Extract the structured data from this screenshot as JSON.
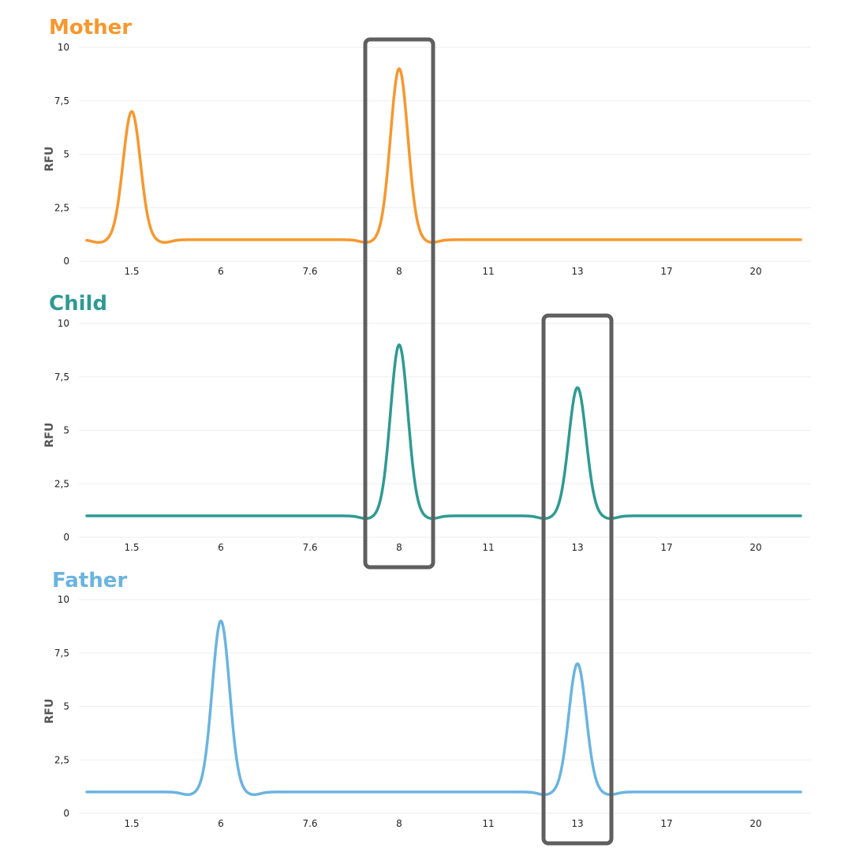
{
  "chart_data": [
    {
      "type": "line",
      "title": "Mother",
      "color": "#F7972E",
      "ylabel": "RFU",
      "ylim": [
        0,
        10
      ],
      "yticks": [
        "0",
        "2,5",
        "5",
        "7,5",
        "10"
      ],
      "categories": [
        "1.5",
        "6",
        "7.6",
        "8",
        "11",
        "13",
        "17",
        "20"
      ],
      "baseline": 1,
      "peaks": [
        {
          "category": "1.5",
          "value": 7
        },
        {
          "category": "8",
          "value": 9
        }
      ]
    },
    {
      "type": "line",
      "title": "Child",
      "color": "#2E9A93",
      "ylabel": "RFU",
      "ylim": [
        0,
        10
      ],
      "yticks": [
        "0",
        "2,5",
        "5",
        "7,5",
        "10"
      ],
      "categories": [
        "1.5",
        "6",
        "7.6",
        "8",
        "11",
        "13",
        "17",
        "20"
      ],
      "baseline": 1,
      "peaks": [
        {
          "category": "8",
          "value": 9
        },
        {
          "category": "13",
          "value": 7
        }
      ]
    },
    {
      "type": "line",
      "title": "Father",
      "color": "#6AB4E0",
      "ylabel": "RFU",
      "ylim": [
        0,
        10
      ],
      "yticks": [
        "0",
        "2,5",
        "5",
        "7,5",
        "10"
      ],
      "categories": [
        "1.5",
        "6",
        "7.6",
        "8",
        "11",
        "13",
        "17",
        "20"
      ],
      "baseline": 1,
      "peaks": [
        {
          "category": "6",
          "value": 9
        },
        {
          "category": "13",
          "value": 7
        }
      ]
    }
  ],
  "highlights": [
    {
      "category": "8",
      "panels": [
        "Mother",
        "Child"
      ]
    },
    {
      "category": "13",
      "panels": [
        "Child",
        "Father"
      ]
    }
  ],
  "style": {
    "grid_color": "#eeeeee",
    "axis_text_color": "#222222",
    "ylabel_color": "#555555",
    "highlight_color": "#5f5f5f"
  }
}
